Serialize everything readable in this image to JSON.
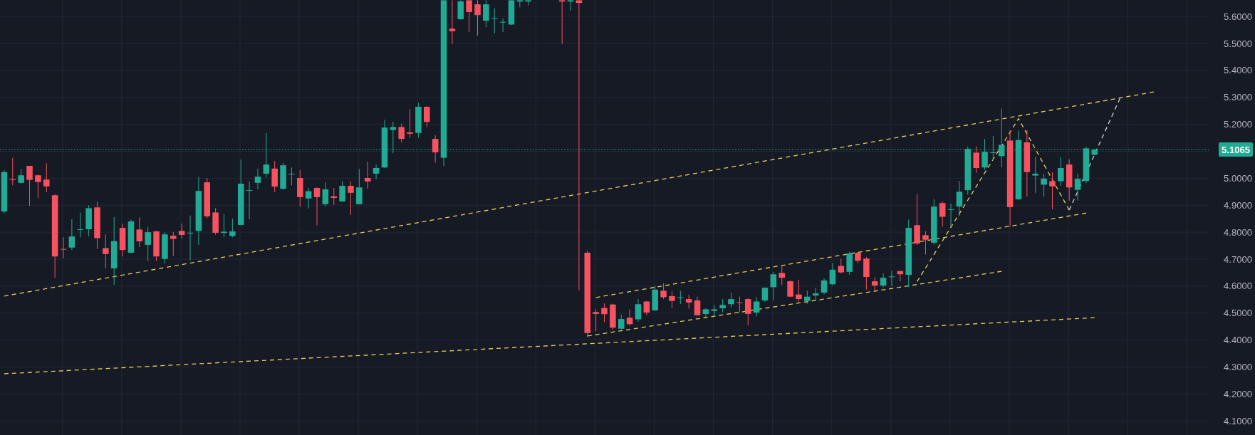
{
  "chart_data": {
    "type": "candlestick",
    "categories": [
      null,
      null,
      null,
      null,
      null,
      null,
      null,
      null,
      null,
      null,
      null,
      null,
      null,
      null,
      null,
      null,
      null,
      null,
      null,
      null,
      null,
      null,
      null,
      null,
      null,
      null,
      null,
      null,
      null,
      null,
      null,
      null,
      null,
      null,
      null,
      null,
      null,
      null,
      null,
      null,
      null,
      null,
      null,
      null,
      null,
      null,
      null,
      null,
      null,
      null,
      null,
      null,
      null,
      null,
      null,
      null,
      null,
      null,
      null,
      null,
      null,
      null,
      null,
      null,
      null,
      null,
      null,
      null,
      null,
      null,
      null,
      null,
      null,
      null,
      null,
      null,
      null,
      null,
      null,
      null,
      null,
      null,
      null,
      null,
      null,
      null,
      null,
      null,
      null,
      null,
      null,
      null,
      null,
      null,
      null,
      null,
      null,
      null,
      null,
      null,
      null,
      null,
      null,
      null,
      null,
      null,
      null,
      null,
      null,
      null,
      null,
      null,
      null,
      null,
      null,
      null,
      null,
      null,
      null,
      null,
      null,
      null,
      null,
      null,
      null,
      null,
      null,
      null,
      null,
      null,
      null,
      null,
      null,
      null,
      null,
      null,
      null,
      null,
      null,
      null,
      null,
      null,
      null
    ],
    "ohlc": [
      [
        4.877,
        5.03,
        4.87,
        5.023
      ],
      [
        4.996,
        5.076,
        4.974,
        4.994
      ],
      [
        4.983,
        5.034,
        4.979,
        5.011
      ],
      [
        5.046,
        5.046,
        4.897,
        4.994
      ],
      [
        5.011,
        5.014,
        4.926,
        4.986
      ],
      [
        4.995,
        5.055,
        4.948,
        4.97
      ],
      [
        4.937,
        4.94,
        4.631,
        4.71
      ],
      [
        4.738,
        4.781,
        4.704,
        4.736
      ],
      [
        4.743,
        4.848,
        4.734,
        4.784
      ],
      [
        4.809,
        4.873,
        4.781,
        4.811
      ],
      [
        4.811,
        4.9,
        4.785,
        4.889
      ],
      [
        4.892,
        4.913,
        4.737,
        4.778
      ],
      [
        4.741,
        4.792,
        4.666,
        4.719
      ],
      [
        4.666,
        4.856,
        4.605,
        4.767
      ],
      [
        4.816,
        4.832,
        4.71,
        4.734
      ],
      [
        4.724,
        4.847,
        4.722,
        4.84
      ],
      [
        4.81,
        4.855,
        4.745,
        4.766
      ],
      [
        4.753,
        4.82,
        4.693,
        4.8
      ],
      [
        4.803,
        4.806,
        4.693,
        4.71
      ],
      [
        4.701,
        4.801,
        4.684,
        4.792
      ],
      [
        4.787,
        4.801,
        4.712,
        4.775
      ],
      [
        4.805,
        4.832,
        4.776,
        4.79
      ],
      [
        4.796,
        4.862,
        4.695,
        4.798
      ],
      [
        4.805,
        5.005,
        4.753,
        4.953
      ],
      [
        4.985,
        5.001,
        4.851,
        4.859
      ],
      [
        4.873,
        4.89,
        4.791,
        4.798
      ],
      [
        4.797,
        4.866,
        4.781,
        4.802
      ],
      [
        4.786,
        4.851,
        4.781,
        4.803
      ],
      [
        4.827,
        5.069,
        4.825,
        4.98
      ],
      [
        4.954,
        4.988,
        4.847,
        4.956
      ],
      [
        4.983,
        5.036,
        4.959,
        5.006
      ],
      [
        5.017,
        5.168,
        5.003,
        5.051
      ],
      [
        5.036,
        5.064,
        4.948,
        4.969
      ],
      [
        4.961,
        5.058,
        4.957,
        5.048
      ],
      [
        5.015,
        5.04,
        4.974,
        5.017
      ],
      [
        5.001,
        5.03,
        4.895,
        4.93
      ],
      [
        4.925,
        4.964,
        4.888,
        4.952
      ],
      [
        4.964,
        4.966,
        4.825,
        4.93
      ],
      [
        4.904,
        4.985,
        4.895,
        4.959
      ],
      [
        4.933,
        4.964,
        4.901,
        4.927
      ],
      [
        4.914,
        4.989,
        4.913,
        4.972
      ],
      [
        4.972,
        4.988,
        4.864,
        4.946
      ],
      [
        4.904,
        5.034,
        4.903,
        4.966
      ],
      [
        5.001,
        5.062,
        4.961,
        4.988
      ],
      [
        5.017,
        5.051,
        4.996,
        5.038
      ],
      [
        5.04,
        5.217,
        5.038,
        5.188
      ],
      [
        5.179,
        5.21,
        5.093,
        5.19
      ],
      [
        5.19,
        5.203,
        5.133,
        5.146
      ],
      [
        5.17,
        5.256,
        5.15,
        5.165
      ],
      [
        5.168,
        5.28,
        5.15,
        5.265
      ],
      [
        5.265,
        5.267,
        5.19,
        5.209
      ],
      [
        5.146,
        5.159,
        5.058,
        5.096
      ],
      [
        5.076,
        5.66,
        5.045,
        5.66
      ],
      [
        5.555,
        5.66,
        5.498,
        5.545
      ],
      [
        5.59,
        5.66,
        5.588,
        5.656
      ],
      [
        5.66,
        5.66,
        5.542,
        5.616
      ],
      [
        5.645,
        5.66,
        5.529,
        5.605
      ],
      [
        5.584,
        5.66,
        5.56,
        5.645
      ],
      [
        5.591,
        5.63,
        5.537,
        5.593
      ],
      [
        5.578,
        5.592,
        5.542,
        5.58
      ],
      [
        5.57,
        5.66,
        5.568,
        5.66
      ],
      [
        5.655,
        5.66,
        5.634,
        5.66
      ],
      [
        5.655,
        5.66,
        5.641,
        5.66
      ],
      null,
      null,
      null,
      [
        5.66,
        5.66,
        5.498,
        5.655
      ],
      [
        5.655,
        5.66,
        5.621,
        5.66
      ],
      [
        5.66,
        5.66,
        4.585,
        5.65
      ],
      [
        4.724,
        4.732,
        4.411,
        4.426
      ],
      [
        4.504,
        4.514,
        4.433,
        4.497
      ],
      [
        4.519,
        4.536,
        4.466,
        4.496
      ],
      [
        4.532,
        4.535,
        4.438,
        4.446
      ],
      [
        4.442,
        4.495,
        4.44,
        4.478
      ],
      [
        4.483,
        4.514,
        4.453,
        4.459
      ],
      [
        4.477,
        4.552,
        4.468,
        4.533
      ],
      [
        4.543,
        4.545,
        4.492,
        4.502
      ],
      [
        4.51,
        4.602,
        4.508,
        4.587
      ],
      [
        4.583,
        4.611,
        4.552,
        4.559
      ],
      [
        4.563,
        4.58,
        4.518,
        4.545
      ],
      [
        4.557,
        4.583,
        4.534,
        4.559
      ],
      [
        4.552,
        4.568,
        4.517,
        4.539
      ],
      [
        4.547,
        4.561,
        4.49,
        4.492
      ],
      [
        4.497,
        4.518,
        4.486,
        4.514
      ],
      [
        4.508,
        4.53,
        4.49,
        4.514
      ],
      [
        4.518,
        4.552,
        4.503,
        4.53
      ],
      [
        4.533,
        4.576,
        4.521,
        4.552
      ],
      [
        4.54,
        4.561,
        4.503,
        4.538
      ],
      [
        4.552,
        4.555,
        4.455,
        4.497
      ],
      [
        4.502,
        4.559,
        4.488,
        4.543
      ],
      [
        4.547,
        4.596,
        4.541,
        4.594
      ],
      [
        4.596,
        4.653,
        4.547,
        4.644
      ],
      [
        4.649,
        4.677,
        4.605,
        4.631
      ],
      [
        4.618,
        4.621,
        4.559,
        4.561
      ],
      [
        4.569,
        4.624,
        4.543,
        4.552
      ],
      [
        4.545,
        4.583,
        4.534,
        4.561
      ],
      [
        4.565,
        4.594,
        4.55,
        4.573
      ],
      [
        4.576,
        4.629,
        4.569,
        4.621
      ],
      [
        4.607,
        4.686,
        4.603,
        4.661
      ],
      [
        4.675,
        4.702,
        4.647,
        4.651
      ],
      [
        4.653,
        4.728,
        4.642,
        4.721
      ],
      [
        4.724,
        4.726,
        4.684,
        4.694
      ],
      [
        4.702,
        4.708,
        4.587,
        4.634
      ],
      [
        4.618,
        4.634,
        4.578,
        4.602
      ],
      [
        4.602,
        4.647,
        4.596,
        4.631
      ],
      [
        4.634,
        4.657,
        4.6,
        4.636
      ],
      [
        4.656,
        4.657,
        4.618,
        4.644
      ],
      [
        4.642,
        4.847,
        4.596,
        4.816
      ],
      [
        4.826,
        4.941,
        4.753,
        4.758
      ],
      [
        4.789,
        4.803,
        4.717,
        4.772
      ],
      [
        4.761,
        4.922,
        4.754,
        4.895
      ],
      [
        4.908,
        4.914,
        4.82,
        4.857
      ],
      [
        4.883,
        4.906,
        4.82,
        4.885
      ],
      [
        4.895,
        4.99,
        4.86,
        4.95
      ],
      [
        4.956,
        5.118,
        4.939,
        5.109
      ],
      [
        5.095,
        5.118,
        5.02,
        5.038
      ],
      [
        5.04,
        5.146,
        5.032,
        5.098
      ],
      [
        5.094,
        5.157,
        5.067,
        5.096
      ],
      [
        5.082,
        5.259,
        5.04,
        5.124
      ],
      [
        5.14,
        5.177,
        4.82,
        4.893
      ],
      [
        4.922,
        5.177,
        4.92,
        5.142
      ],
      [
        5.133,
        5.179,
        4.932,
        5.023
      ],
      [
        5.01,
        5.08,
        4.946,
        5.017
      ],
      [
        4.976,
        5.017,
        4.932,
        4.999
      ],
      [
        4.989,
        5.023,
        4.885,
        4.97
      ],
      [
        4.989,
        5.078,
        4.972,
        5.038
      ],
      [
        5.051,
        5.071,
        4.917,
        4.966
      ],
      [
        4.957,
        5.017,
        4.917,
        4.998
      ],
      [
        4.99,
        5.117,
        4.982,
        5.111
      ],
      [
        5.087,
        5.108,
        5.085,
        5.1065
      ],
      null,
      null,
      null,
      null,
      null,
      null,
      null,
      null,
      null,
      null,
      null,
      null,
      null
    ],
    "colors": [
      "#22ab94",
      "#f7525f",
      "#22ab94",
      "#f7525f",
      "#f7525f",
      "#f7525f",
      "#f7525f",
      "#f7525f",
      "#22ab94",
      "#22ab94",
      "#22ab94",
      "#f7525f",
      "#f7525f",
      "#22ab94",
      "#f7525f",
      "#22ab94",
      "#f7525f",
      "#22ab94",
      "#f7525f",
      "#22ab94",
      "#f7525f",
      "#f7525f",
      "#22ab94",
      "#22ab94",
      "#f7525f",
      "#f7525f",
      "#22ab94",
      "#22ab94",
      "#22ab94",
      "#22ab94",
      "#22ab94",
      "#22ab94",
      "#f7525f",
      "#22ab94",
      "#22ab94",
      "#f7525f",
      "#22ab94",
      "#f7525f",
      "#22ab94",
      "#f7525f",
      "#22ab94",
      "#f7525f",
      "#22ab94",
      "#f7525f",
      "#22ab94",
      "#22ab94",
      "#22ab94",
      "#f7525f",
      "#f7525f",
      "#22ab94",
      "#f7525f",
      "#f7525f",
      "#22ab94",
      "#f7525f",
      "#22ab94",
      "#f7525f",
      "#f7525f",
      "#22ab94",
      "#22ab94",
      "#22ab94",
      "#22ab94",
      "#22ab94",
      "#22ab94",
      null,
      null,
      null,
      "#f7525f",
      "#22ab94",
      "#f7525f",
      "#f7525f",
      "#f7525f",
      "#f7525f",
      "#f7525f",
      "#22ab94",
      "#f7525f",
      "#22ab94",
      "#f7525f",
      "#22ab94",
      "#f7525f",
      "#f7525f",
      "#22ab94",
      "#f7525f",
      "#f7525f",
      "#22ab94",
      "#22ab94",
      "#22ab94",
      "#22ab94",
      "#f7525f",
      "#f7525f",
      "#22ab94",
      "#22ab94",
      "#22ab94",
      "#f7525f",
      "#f7525f",
      "#f7525f",
      "#22ab94",
      "#22ab94",
      "#22ab94",
      "#22ab94",
      "#f7525f",
      "#22ab94",
      "#f7525f",
      "#f7525f",
      "#f7525f",
      "#22ab94",
      "#22ab94",
      "#f7525f",
      "#22ab94",
      "#f7525f",
      "#f7525f",
      "#22ab94",
      "#f7525f",
      "#22ab94",
      "#22ab94",
      "#22ab94",
      "#f7525f",
      "#22ab94",
      "#22ab94",
      "#22ab94",
      "#f7525f",
      "#22ab94",
      "#f7525f",
      "#22ab94",
      "#22ab94",
      "#f7525f",
      "#22ab94",
      "#f7525f",
      "#22ab94",
      "#22ab94",
      "#22ab94",
      null,
      null,
      null,
      null,
      null,
      null,
      null,
      null,
      null,
      null,
      null,
      null,
      null
    ],
    "series": [
      {
        "type": "line",
        "color": "#e8cf5a",
        "values": [
          4.563,
          null,
          null,
          null,
          null,
          null,
          null,
          null,
          null,
          null,
          null,
          null,
          null,
          null,
          null,
          null,
          null,
          null,
          null,
          null,
          null,
          null,
          null,
          null,
          null,
          null,
          null,
          null,
          null,
          null,
          null,
          null,
          null,
          null,
          null,
          null,
          null,
          null,
          null,
          null,
          null,
          null,
          null,
          null,
          null,
          null,
          null,
          null,
          null,
          null,
          null,
          null,
          null,
          null,
          null,
          null,
          null,
          null,
          null,
          null,
          null,
          null,
          null,
          null,
          null,
          null,
          null,
          null,
          null,
          null,
          null,
          null,
          null,
          null,
          null,
          null,
          null,
          null,
          null,
          null,
          null,
          null,
          null,
          null,
          null,
          null,
          null,
          null,
          null,
          null,
          null,
          null,
          null,
          null,
          null,
          null,
          null,
          null,
          null,
          null,
          null,
          null,
          null,
          null,
          null,
          null,
          null,
          null,
          null,
          null,
          null,
          null,
          null,
          null,
          null,
          null,
          null,
          null,
          null,
          null,
          null,
          null,
          null,
          null,
          null,
          null,
          null,
          null,
          null,
          null,
          null,
          null,
          null,
          null,
          null,
          null,
          5.32,
          null,
          null,
          null,
          null,
          null,
          null
        ]
      },
      {
        "type": "line",
        "color": "#e8cf5a",
        "values": [
          4.275,
          null,
          null,
          null,
          null,
          null,
          null,
          null,
          null,
          null,
          null,
          null,
          null,
          null,
          null,
          null,
          null,
          null,
          null,
          null,
          null,
          null,
          null,
          null,
          null,
          null,
          null,
          null,
          null,
          null,
          null,
          null,
          null,
          null,
          null,
          null,
          null,
          null,
          null,
          null,
          null,
          null,
          null,
          null,
          null,
          null,
          null,
          null,
          null,
          null,
          null,
          null,
          null,
          null,
          null,
          null,
          null,
          null,
          null,
          null,
          null,
          null,
          null,
          null,
          null,
          null,
          null,
          null,
          null,
          null,
          null,
          null,
          null,
          null,
          null,
          null,
          null,
          null,
          null,
          null,
          null,
          null,
          null,
          null,
          null,
          null,
          null,
          null,
          null,
          null,
          null,
          null,
          null,
          null,
          null,
          null,
          null,
          null,
          null,
          null,
          null,
          null,
          null,
          null,
          null,
          null,
          null,
          null,
          null,
          null,
          null,
          null,
          null,
          null,
          null,
          null,
          null,
          null,
          null,
          null,
          null,
          null,
          null,
          null,
          null,
          null,
          null,
          null,
          null,
          4.483,
          null,
          null,
          null,
          null,
          null,
          null,
          null,
          null,
          null,
          null,
          null,
          null,
          null
        ]
      },
      {
        "type": "line",
        "color": "#e8cf5a",
        "values": [
          null,
          null,
          null,
          null,
          null,
          null,
          null,
          null,
          null,
          null,
          null,
          null,
          null,
          null,
          null,
          null,
          null,
          null,
          null,
          null,
          null,
          null,
          null,
          null,
          null,
          null,
          null,
          null,
          null,
          null,
          null,
          null,
          null,
          null,
          null,
          null,
          null,
          null,
          null,
          null,
          null,
          null,
          null,
          null,
          null,
          null,
          null,
          null,
          null,
          null,
          null,
          null,
          null,
          null,
          null,
          null,
          null,
          null,
          null,
          null,
          null,
          null,
          null,
          null,
          null,
          null,
          null,
          null,
          null,
          null,
          4.558,
          null,
          null,
          null,
          null,
          null,
          null,
          null,
          null,
          null,
          null,
          null,
          null,
          null,
          null,
          null,
          null,
          null,
          null,
          null,
          null,
          null,
          null,
          null,
          null,
          null,
          null,
          null,
          null,
          null,
          null,
          null,
          null,
          null,
          null,
          null,
          null,
          null,
          null,
          null,
          null,
          null,
          null,
          null,
          null,
          null,
          null,
          null,
          null,
          null,
          null,
          null,
          null,
          null,
          null,
          null,
          null,
          null,
          4.871,
          null,
          null,
          null,
          null,
          null,
          null,
          null,
          null,
          null,
          null,
          null,
          null,
          null,
          null
        ]
      },
      {
        "type": "line",
        "color": "#e8cf5a",
        "values": [
          null,
          null,
          null,
          null,
          null,
          null,
          null,
          null,
          null,
          null,
          null,
          null,
          null,
          null,
          null,
          null,
          null,
          null,
          null,
          null,
          null,
          null,
          null,
          null,
          null,
          null,
          null,
          null,
          null,
          null,
          null,
          null,
          null,
          null,
          null,
          null,
          null,
          null,
          null,
          null,
          null,
          null,
          null,
          null,
          null,
          null,
          null,
          null,
          null,
          null,
          null,
          null,
          null,
          null,
          null,
          null,
          null,
          null,
          null,
          null,
          null,
          null,
          null,
          null,
          null,
          null,
          null,
          null,
          null,
          4.415,
          null,
          null,
          null,
          null,
          null,
          null,
          null,
          null,
          null,
          null,
          null,
          null,
          null,
          null,
          null,
          null,
          null,
          null,
          null,
          null,
          null,
          null,
          null,
          null,
          null,
          null,
          null,
          null,
          null,
          null,
          null,
          null,
          null,
          null,
          null,
          null,
          null,
          null,
          null,
          null,
          null,
          null,
          null,
          null,
          null,
          null,
          null,
          null,
          4.655,
          null,
          null,
          null,
          null,
          null,
          null,
          null,
          null,
          null,
          null,
          null,
          null,
          null,
          null,
          null,
          null,
          null,
          null,
          null,
          null,
          null,
          null,
          null,
          null
        ]
      },
      {
        "type": "line",
        "color": "#e8cf5a",
        "values": [
          null,
          null,
          null,
          null,
          null,
          null,
          null,
          null,
          null,
          null,
          null,
          null,
          null,
          null,
          null,
          null,
          null,
          null,
          null,
          null,
          null,
          null,
          null,
          null,
          null,
          null,
          null,
          null,
          null,
          null,
          null,
          null,
          null,
          null,
          null,
          null,
          null,
          null,
          null,
          null,
          null,
          null,
          null,
          null,
          null,
          null,
          null,
          null,
          null,
          null,
          null,
          null,
          null,
          null,
          null,
          null,
          null,
          null,
          null,
          null,
          null,
          null,
          null,
          null,
          null,
          null,
          null,
          null,
          null,
          null,
          null,
          null,
          null,
          null,
          null,
          null,
          null,
          null,
          null,
          null,
          null,
          null,
          null,
          null,
          null,
          null,
          null,
          null,
          null,
          null,
          null,
          null,
          null,
          null,
          null,
          null,
          null,
          null,
          null,
          null,
          null,
          null,
          null,
          null,
          null,
          null,
          null,
          null,
          4.617,
          null,
          null,
          null,
          null,
          null,
          null,
          null,
          null,
          null,
          null,
          null,
          5.221,
          null,
          null,
          null,
          null,
          null,
          4.882,
          null,
          null,
          null,
          null,
          null,
          null,
          null,
          null,
          null,
          null,
          null,
          null,
          null,
          null,
          null,
          null
        ]
      },
      {
        "type": "line",
        "color": "#d1d4dc",
        "values": [
          null,
          null,
          null,
          null,
          null,
          null,
          null,
          null,
          null,
          null,
          null,
          null,
          null,
          null,
          null,
          null,
          null,
          null,
          null,
          null,
          null,
          null,
          null,
          null,
          null,
          null,
          null,
          null,
          null,
          null,
          null,
          null,
          null,
          null,
          null,
          null,
          null,
          null,
          null,
          null,
          null,
          null,
          null,
          null,
          null,
          null,
          null,
          null,
          null,
          null,
          null,
          null,
          null,
          null,
          null,
          null,
          null,
          null,
          null,
          null,
          null,
          null,
          null,
          null,
          null,
          null,
          null,
          null,
          null,
          null,
          null,
          null,
          null,
          null,
          null,
          null,
          null,
          null,
          null,
          null,
          null,
          null,
          null,
          null,
          null,
          null,
          null,
          null,
          null,
          null,
          null,
          null,
          null,
          null,
          null,
          null,
          null,
          null,
          null,
          null,
          null,
          null,
          null,
          null,
          null,
          null,
          null,
          null,
          null,
          null,
          null,
          null,
          null,
          null,
          null,
          null,
          null,
          null,
          null,
          null,
          null,
          null,
          null,
          null,
          null,
          null,
          4.882,
          null,
          null,
          null,
          null,
          null,
          5.296,
          null,
          null,
          null,
          null,
          null,
          null,
          null,
          null,
          null,
          null
        ]
      }
    ],
    "line_style": "dashed",
    "ylim": [
      4.048,
      5.661
    ],
    "yticks": [
      {
        "value": 4.1,
        "label": "4.1000"
      },
      {
        "value": 4.2,
        "label": "4.2000"
      },
      {
        "value": 4.3,
        "label": "4.3000"
      },
      {
        "value": 4.4,
        "label": "4.4000"
      },
      {
        "value": 4.5,
        "label": "4.5000"
      },
      {
        "value": 4.6,
        "label": "4.6000"
      },
      {
        "value": 4.7,
        "label": "4.7000"
      },
      {
        "value": 4.8,
        "label": "4.8000"
      },
      {
        "value": 4.9,
        "label": "4.9000"
      },
      {
        "value": 5.0,
        "label": "5.0000"
      },
      {
        "value": 5.1,
        "label": null
      },
      {
        "value": 5.2,
        "label": "5.2000"
      },
      {
        "value": 5.3,
        "label": "5.3000"
      },
      {
        "value": 5.4,
        "label": "5.4000"
      },
      {
        "value": 5.5,
        "label": "5.5000"
      },
      {
        "value": 5.6,
        "label": "5.6000"
      }
    ],
    "ref_lines": [
      {
        "axis": "y",
        "value": 5.1065,
        "label": "5.1065",
        "color": "#22ab94",
        "line_style": "dotted"
      }
    ],
    "tick_labels": "y",
    "grid": true
  }
}
